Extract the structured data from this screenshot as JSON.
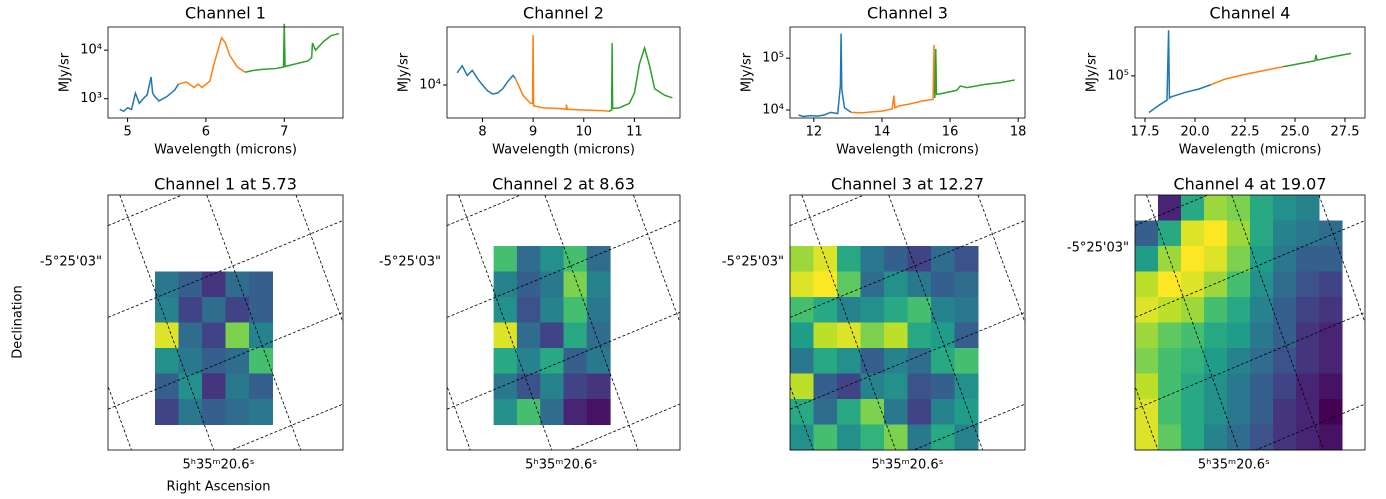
{
  "chart_data": [
    {
      "type": "line",
      "title": "Channel 1",
      "xlabel": "Wavelength (microns)",
      "ylabel": "MJy/sr",
      "log_y": true,
      "xlim": [
        4.75,
        7.75
      ],
      "ylim": [
        400,
        30000
      ],
      "xticks": [
        5,
        6,
        7
      ],
      "yticks": [
        {
          "value": 1000,
          "label": "10³"
        },
        {
          "value": 10000,
          "label": "10⁴"
        }
      ],
      "series": [
        {
          "color": "#1f77b4",
          "x": [
            4.9,
            4.95,
            5.0,
            5.05,
            5.1,
            5.15,
            5.2,
            5.25,
            5.3,
            5.32,
            5.35,
            5.4,
            5.5,
            5.6,
            5.65
          ],
          "values": [
            600,
            550,
            650,
            600,
            1300,
            800,
            1000,
            1200,
            2800,
            1300,
            1100,
            900,
            1100,
            1500,
            2000
          ]
        },
        {
          "color": "#ff7f0e",
          "x": [
            5.65,
            5.75,
            5.85,
            5.9,
            5.95,
            6.05,
            6.1,
            6.2,
            6.25,
            6.3,
            6.4,
            6.5
          ],
          "values": [
            2000,
            2200,
            1700,
            2000,
            1700,
            2300,
            5000,
            18000,
            14000,
            8000,
            4500,
            3500
          ]
        },
        {
          "color": "#2ca02c",
          "x": [
            6.5,
            6.6,
            6.7,
            6.9,
            6.99,
            7.0,
            7.01,
            7.1,
            7.3,
            7.35,
            7.36,
            7.4,
            7.5,
            7.6,
            7.7
          ],
          "values": [
            3500,
            3800,
            4000,
            4200,
            4500,
            35000,
            4600,
            5000,
            6000,
            7000,
            14000,
            10000,
            15000,
            20000,
            22000
          ]
        }
      ]
    },
    {
      "type": "line",
      "title": "Channel 2",
      "xlabel": "Wavelength (microns)",
      "ylabel": "MJy/sr",
      "log_y": true,
      "xlim": [
        7.3,
        11.9
      ],
      "ylim": [
        4000,
        50000
      ],
      "xticks": [
        8,
        9,
        10,
        11
      ],
      "yticks": [
        {
          "value": 10000,
          "label": "10⁴"
        }
      ],
      "series": [
        {
          "color": "#1f77b4",
          "x": [
            7.5,
            7.6,
            7.7,
            7.8,
            7.9,
            8.0,
            8.1,
            8.2,
            8.3,
            8.4,
            8.5,
            8.6,
            8.65
          ],
          "values": [
            14000,
            17000,
            13000,
            15000,
            12000,
            10000,
            8500,
            7800,
            8000,
            9000,
            11000,
            13000,
            12000
          ]
        },
        {
          "color": "#ff7f0e",
          "x": [
            8.65,
            8.8,
            8.95,
            8.99,
            9.0,
            9.01,
            9.2,
            9.5,
            9.65,
            9.66,
            9.67,
            10.0,
            10.4,
            10.5
          ],
          "values": [
            12000,
            7500,
            6000,
            6000,
            40000,
            5600,
            5300,
            5200,
            5100,
            5800,
            5100,
            5000,
            4900,
            4800
          ]
        },
        {
          "color": "#2ca02c",
          "x": [
            10.5,
            10.55,
            10.56,
            10.57,
            10.7,
            10.9,
            11.0,
            11.1,
            11.2,
            11.3,
            11.4,
            11.6,
            11.75
          ],
          "values": [
            4800,
            5000,
            32000,
            5200,
            5300,
            6000,
            8000,
            18000,
            28000,
            17000,
            9000,
            7500,
            7000
          ]
        }
      ]
    },
    {
      "type": "line",
      "title": "Channel 3",
      "xlabel": "Wavelength (microns)",
      "ylabel": "MJy/sr",
      "log_y": true,
      "xlim": [
        11.3,
        18.2
      ],
      "ylim": [
        7000,
        400000
      ],
      "xticks": [
        12,
        14,
        16,
        18
      ],
      "yticks": [
        {
          "value": 10000,
          "label": "10⁴"
        },
        {
          "value": 100000,
          "label": "10⁵"
        }
      ],
      "series": [
        {
          "color": "#1f77b4",
          "x": [
            11.55,
            11.7,
            11.9,
            12.1,
            12.3,
            12.5,
            12.7,
            12.78,
            12.8,
            12.82,
            12.9,
            13.1
          ],
          "values": [
            8000,
            7500,
            7800,
            7600,
            8000,
            9000,
            8500,
            30000,
            300000,
            25000,
            11000,
            9000
          ]
        },
        {
          "color": "#ff7f0e",
          "x": [
            13.1,
            13.4,
            13.7,
            14.0,
            14.3,
            14.35,
            14.38,
            14.5,
            14.8,
            15.2,
            15.5,
            15.53,
            15.55
          ],
          "values": [
            9000,
            8800,
            9200,
            9500,
            10500,
            19000,
            11000,
            12000,
            13000,
            15000,
            16000,
            180000,
            17000
          ]
        },
        {
          "color": "#2ca02c",
          "x": [
            15.55,
            15.58,
            15.6,
            15.8,
            16.2,
            16.3,
            16.5,
            17.0,
            17.5,
            17.9
          ],
          "values": [
            17000,
            150000,
            20000,
            21000,
            24000,
            29000,
            27000,
            31000,
            34000,
            38000
          ]
        }
      ]
    },
    {
      "type": "line",
      "title": "Channel 4",
      "xlabel": "Wavelength (microns)",
      "ylabel": "MJy/sr",
      "log_y": true,
      "xlim": [
        17.0,
        28.5
      ],
      "ylim": [
        25000,
        500000
      ],
      "xticks": [
        17.5,
        {
          "value": 20,
          "label": "20.0"
        },
        22.5,
        {
          "value": 25,
          "label": "25.0"
        },
        27.5
      ],
      "yticks": [
        {
          "value": 100000,
          "label": "10⁵"
        }
      ],
      "series": [
        {
          "color": "#1f77b4",
          "x": [
            17.7,
            18.2,
            18.6,
            18.68,
            18.72,
            18.8,
            19.5,
            20.2,
            20.8
          ],
          "values": [
            30000,
            38000,
            45000,
            450000,
            48000,
            50000,
            58000,
            65000,
            75000
          ]
        },
        {
          "color": "#ff7f0e",
          "x": [
            20.8,
            21.5,
            22.5,
            23.5,
            24.4
          ],
          "values": [
            75000,
            90000,
            105000,
            120000,
            135000
          ]
        },
        {
          "color": "#2ca02c",
          "x": [
            24.4,
            25.5,
            26.0,
            26.05,
            26.1,
            27.0,
            27.8
          ],
          "values": [
            135000,
            155000,
            165000,
            200000,
            168000,
            190000,
            210000
          ]
        }
      ]
    },
    {
      "type": "image",
      "title": "Channel 1 at 5.73",
      "colormap": "viridis",
      "xlabel": "Right Ascension",
      "ylabel": "Declination",
      "xtick_label": "5ʰ35ᵐ20.6ˢ",
      "ytick_label": "-5°25'03\"",
      "values": [
        [
          null,
          null,
          null,
          null,
          null,
          null,
          null,
          null,
          null,
          null
        ],
        [
          null,
          null,
          null,
          null,
          null,
          null,
          null,
          null,
          null,
          null
        ],
        [
          null,
          null,
          null,
          null,
          null,
          null,
          null,
          null,
          null,
          null
        ],
        [
          null,
          null,
          0.4,
          0.3,
          0.15,
          0.35,
          0.3,
          null,
          null,
          null
        ],
        [
          null,
          null,
          0.45,
          0.2,
          0.35,
          0.2,
          0.3,
          null,
          null,
          null
        ],
        [
          null,
          null,
          0.95,
          0.35,
          0.2,
          0.8,
          0.45,
          null,
          null,
          null
        ],
        [
          null,
          null,
          0.5,
          0.4,
          0.3,
          0.35,
          0.7,
          null,
          null,
          null
        ],
        [
          null,
          null,
          0.3,
          0.5,
          0.15,
          0.4,
          0.3,
          null,
          null,
          null
        ],
        [
          null,
          null,
          0.2,
          0.4,
          0.3,
          0.35,
          0.4,
          null,
          null,
          null
        ],
        [
          null,
          null,
          null,
          null,
          null,
          null,
          null,
          null,
          null,
          null
        ]
      ]
    },
    {
      "type": "image",
      "title": "Channel 2 at 8.63",
      "colormap": "viridis",
      "xtick_label": "5ʰ35ᵐ20.6ˢ",
      "ytick_label": "-5°25'03\"",
      "values": [
        [
          null,
          null,
          null,
          null,
          null,
          null,
          null,
          null,
          null,
          null
        ],
        [
          null,
          null,
          null,
          null,
          null,
          null,
          null,
          null,
          null,
          null
        ],
        [
          null,
          null,
          0.7,
          0.35,
          0.5,
          0.7,
          0.35,
          null,
          null,
          null
        ],
        [
          null,
          null,
          0.45,
          0.3,
          0.4,
          0.8,
          0.45,
          null,
          null,
          null
        ],
        [
          null,
          null,
          0.5,
          0.25,
          0.45,
          0.7,
          0.4,
          null,
          null,
          null
        ],
        [
          null,
          null,
          0.95,
          0.35,
          0.2,
          0.6,
          0.35,
          null,
          null,
          null
        ],
        [
          null,
          null,
          0.6,
          0.45,
          0.6,
          0.3,
          0.4,
          null,
          null,
          null
        ],
        [
          null,
          null,
          0.4,
          0.25,
          0.45,
          0.2,
          0.15,
          null,
          null,
          null
        ],
        [
          null,
          null,
          0.5,
          0.7,
          0.35,
          0.1,
          0.05,
          null,
          null,
          null
        ],
        [
          null,
          null,
          null,
          null,
          null,
          null,
          null,
          null,
          null,
          null
        ]
      ]
    },
    {
      "type": "image",
      "title": "Channel 3 at 12.27",
      "colormap": "viridis",
      "xtick_label": "5ʰ35ᵐ20.6ˢ",
      "ytick_label": "-5°25'03\"",
      "values": [
        [
          null,
          null,
          null,
          null,
          null,
          null,
          null,
          null,
          null,
          null
        ],
        [
          null,
          null,
          null,
          null,
          null,
          null,
          null,
          null,
          null,
          null
        ],
        [
          0.85,
          0.95,
          0.6,
          0.4,
          0.3,
          0.2,
          0.35,
          0.25,
          null,
          null
        ],
        [
          0.95,
          1.0,
          0.75,
          0.35,
          0.5,
          0.4,
          0.3,
          0.35,
          null,
          null
        ],
        [
          0.7,
          0.6,
          0.45,
          0.5,
          0.6,
          0.7,
          0.45,
          0.4,
          null,
          null
        ],
        [
          0.55,
          0.9,
          0.95,
          0.8,
          0.9,
          0.6,
          0.55,
          0.3,
          null,
          null
        ],
        [
          0.4,
          0.6,
          0.5,
          0.3,
          0.45,
          0.35,
          0.6,
          0.7,
          null,
          null
        ],
        [
          0.9,
          0.3,
          0.2,
          0.45,
          0.5,
          0.25,
          0.3,
          0.5,
          null,
          null
        ],
        [
          0.6,
          0.35,
          0.6,
          0.8,
          0.4,
          0.2,
          0.45,
          0.55,
          null,
          null
        ],
        [
          0.5,
          0.7,
          0.5,
          0.65,
          0.8,
          0.4,
          0.6,
          0.45,
          null,
          null
        ]
      ]
    },
    {
      "type": "image",
      "title": "Channel 4 at 19.07",
      "colormap": "viridis",
      "xtick_label": "5ʰ35ᵐ20.6ˢ",
      "ytick_label": "-5°25'03\"",
      "values": [
        [
          null,
          0.1,
          0.6,
          0.85,
          0.8,
          0.6,
          0.5,
          0.45,
          null,
          null
        ],
        [
          0.3,
          0.6,
          0.95,
          1.0,
          0.85,
          0.6,
          0.45,
          0.4,
          0.35,
          null
        ],
        [
          0.55,
          0.85,
          1.0,
          0.95,
          0.8,
          0.55,
          0.4,
          0.3,
          0.3,
          null
        ],
        [
          0.9,
          1.0,
          0.95,
          0.85,
          0.7,
          0.5,
          0.35,
          0.25,
          0.2,
          null
        ],
        [
          0.95,
          0.9,
          0.85,
          0.7,
          0.6,
          0.45,
          0.3,
          0.2,
          0.15,
          null
        ],
        [
          0.85,
          0.75,
          0.7,
          0.6,
          0.55,
          0.4,
          0.3,
          0.15,
          0.1,
          null
        ],
        [
          0.8,
          0.7,
          0.65,
          0.55,
          0.45,
          0.35,
          0.25,
          0.15,
          0.1,
          null
        ],
        [
          0.9,
          0.7,
          0.6,
          0.5,
          0.4,
          0.3,
          0.2,
          0.1,
          0.05,
          null
        ],
        [
          0.95,
          0.7,
          0.6,
          0.5,
          0.4,
          0.3,
          0.15,
          0.1,
          0.0,
          null
        ],
        [
          0.95,
          0.75,
          0.6,
          0.45,
          0.35,
          0.25,
          0.15,
          0.1,
          0.05,
          null
        ]
      ]
    }
  ]
}
